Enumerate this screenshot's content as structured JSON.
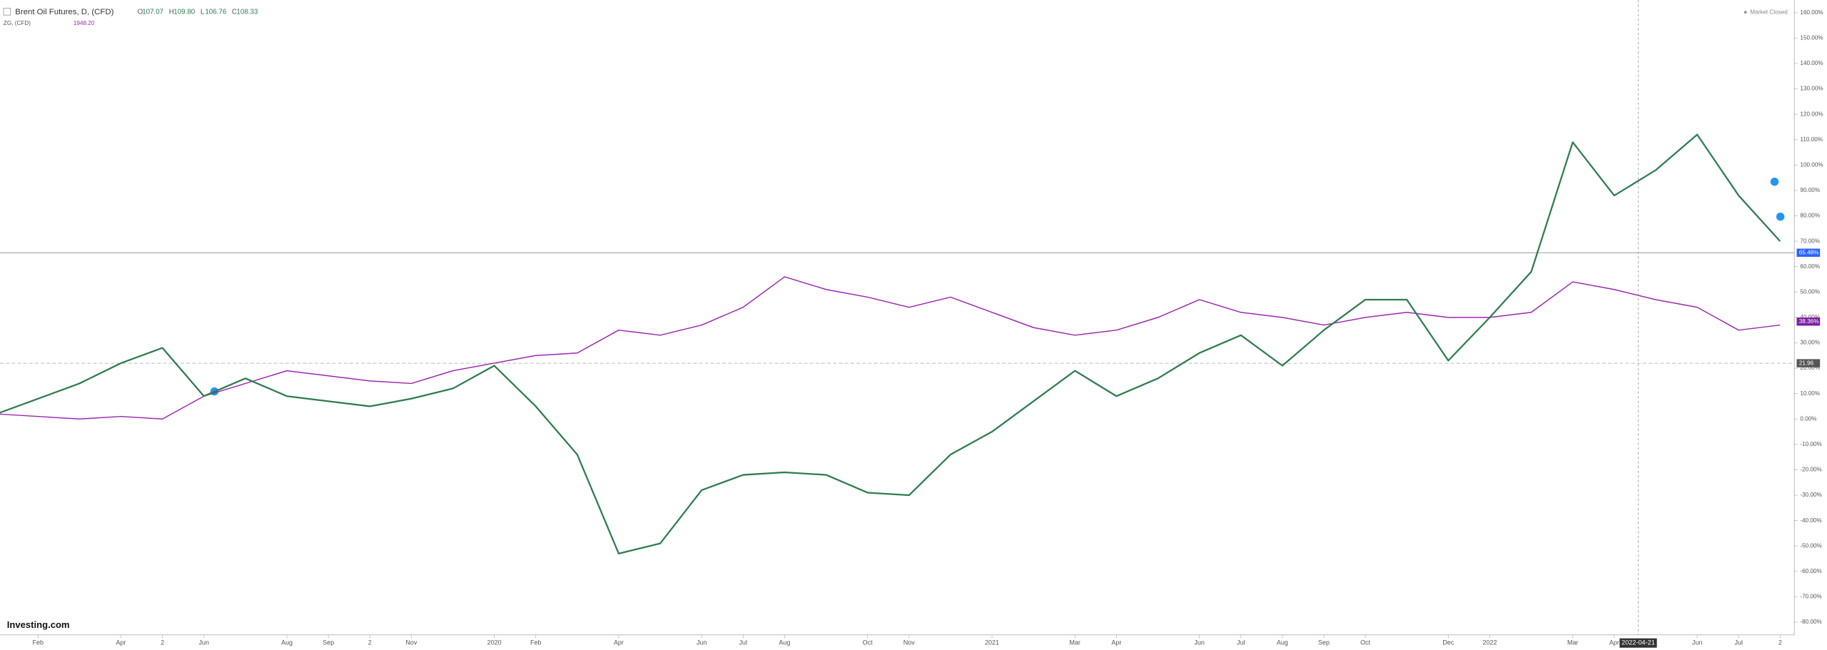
{
  "chart_data": {
    "type": "line",
    "status": "Market Closed",
    "logo": "Investing.com",
    "categories": [
      null,
      "Feb",
      null,
      "Apr",
      "2",
      "Jun",
      null,
      "Aug",
      "Sep",
      "2",
      "Nov",
      null,
      "2020",
      "Feb",
      null,
      "Apr",
      null,
      "Jun",
      "Jul",
      "Aug",
      null,
      "Oct",
      "Nov",
      null,
      "2021",
      null,
      "Mar",
      "Apr",
      null,
      "Jun",
      "Jul",
      "Aug",
      "Sep",
      "Oct",
      null,
      "Dec",
      "2022",
      null,
      "Mar",
      "Apr",
      null,
      "Jun",
      "Jul",
      "2"
    ],
    "series": [
      {
        "name": "Brent Oil Futures, D, (CFD)",
        "color": "#2e7d4f",
        "ohlc": [
          {
            "label": "O",
            "value": "107.07"
          },
          {
            "label": "H",
            "value": "109.80"
          },
          {
            "label": "L",
            "value": "106.76"
          },
          {
            "label": "C",
            "value": "108.33"
          }
        ],
        "values": [
          2,
          8,
          14,
          22,
          28,
          9,
          16,
          9,
          7,
          5,
          8,
          12,
          21,
          5,
          -14,
          -53,
          -49,
          -28,
          -22,
          -21,
          -22,
          -29,
          -30,
          -14,
          -5,
          7,
          19,
          9,
          16,
          26,
          33,
          21,
          35,
          47,
          47,
          23,
          40,
          58,
          109,
          88,
          98,
          112,
          88,
          70
        ]
      },
      {
        "name": "ZG, (CFD)",
        "color": "#9c27b0",
        "last_price": "1948.20",
        "values": [
          2,
          1,
          0,
          1,
          0,
          9,
          14,
          19,
          17,
          15,
          14,
          19,
          22,
          25,
          26,
          35,
          33,
          37,
          44,
          56,
          51,
          48,
          44,
          48,
          42,
          36,
          33,
          35,
          40,
          47,
          42,
          40,
          37,
          40,
          42,
          40,
          40,
          42,
          54,
          51,
          47,
          44,
          35,
          37
        ]
      }
    ],
    "ylim": [
      -85,
      165
    ],
    "yticks": [
      {
        "value": 160,
        "label": "160.00%"
      },
      {
        "value": 150,
        "label": "150.00%"
      },
      {
        "value": 140,
        "label": "140.00%"
      },
      {
        "value": 130,
        "label": "130.00%"
      },
      {
        "value": 120,
        "label": "120.00%"
      },
      {
        "value": 110,
        "label": "110.00%"
      },
      {
        "value": 100,
        "label": "100.00%"
      },
      {
        "value": 90,
        "label": "90.00%"
      },
      {
        "value": 80,
        "label": "80.00%"
      },
      {
        "value": 70,
        "label": "70.00%"
      },
      {
        "value": 60,
        "label": "60.00%"
      },
      {
        "value": 50,
        "label": "50.00%"
      },
      {
        "value": 40,
        "label": "40.00%"
      },
      {
        "value": 30,
        "label": "30.00%"
      },
      {
        "value": 20,
        "label": "20.00%"
      },
      {
        "value": 10,
        "label": "10.00%"
      },
      {
        "value": 0,
        "label": "0.00%"
      },
      {
        "value": -10,
        "label": "-10.00%"
      },
      {
        "value": -20,
        "label": "-20.00%"
      },
      {
        "value": -30,
        "label": "-30.00%"
      },
      {
        "value": -40,
        "label": "-40.00%"
      },
      {
        "value": -50,
        "label": "-50.00%"
      },
      {
        "value": -60,
        "label": "-60.00%"
      },
      {
        "value": -70,
        "label": "-70.00%"
      },
      {
        "value": -80,
        "label": "-80.00%"
      }
    ],
    "price_tags": [
      {
        "value": 65.48,
        "label": "65.48%",
        "color": "#2962ff",
        "line": "solid"
      },
      {
        "value": 38.36,
        "label": "38.36%",
        "color": "#7b1fa2"
      },
      {
        "value": 21.96,
        "label": "21.96",
        "color": "#555555",
        "line": "dashed"
      }
    ],
    "crosshair_date": "2022-04-21"
  }
}
